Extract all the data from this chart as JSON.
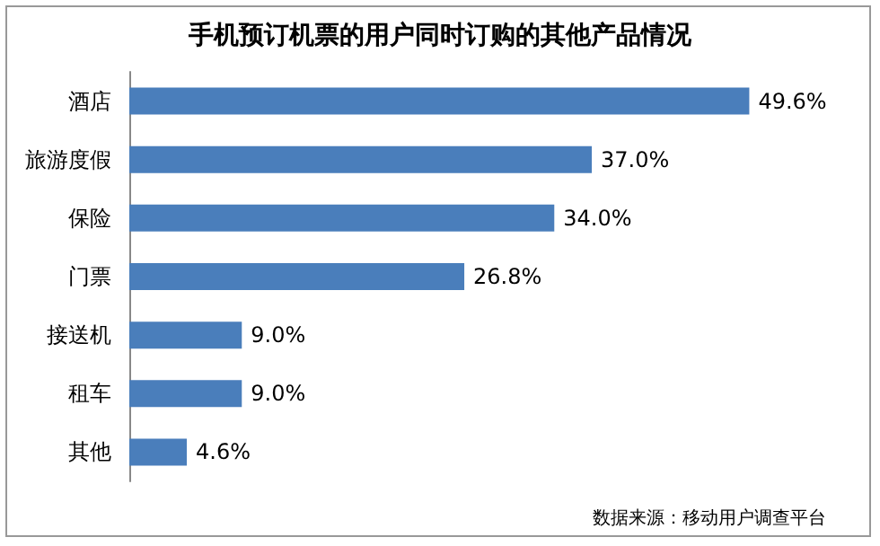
{
  "chart_data": {
    "type": "bar",
    "orientation": "horizontal",
    "title": "手机预订机票的用户同时订购的其他产品情况",
    "categories": [
      "酒店",
      "旅游度假",
      "保险",
      "门票",
      "接送机",
      "租车",
      "其他"
    ],
    "values": [
      49.6,
      37.0,
      34.0,
      26.8,
      9.0,
      9.0,
      4.6
    ],
    "value_labels": [
      "49.6%",
      "37.0%",
      "34.0%",
      "26.8%",
      "9.0%",
      "9.0%",
      "4.6%"
    ],
    "color": "#4a7ebb",
    "annotations": [
      "数据来源：移动用户调查平台"
    ]
  }
}
